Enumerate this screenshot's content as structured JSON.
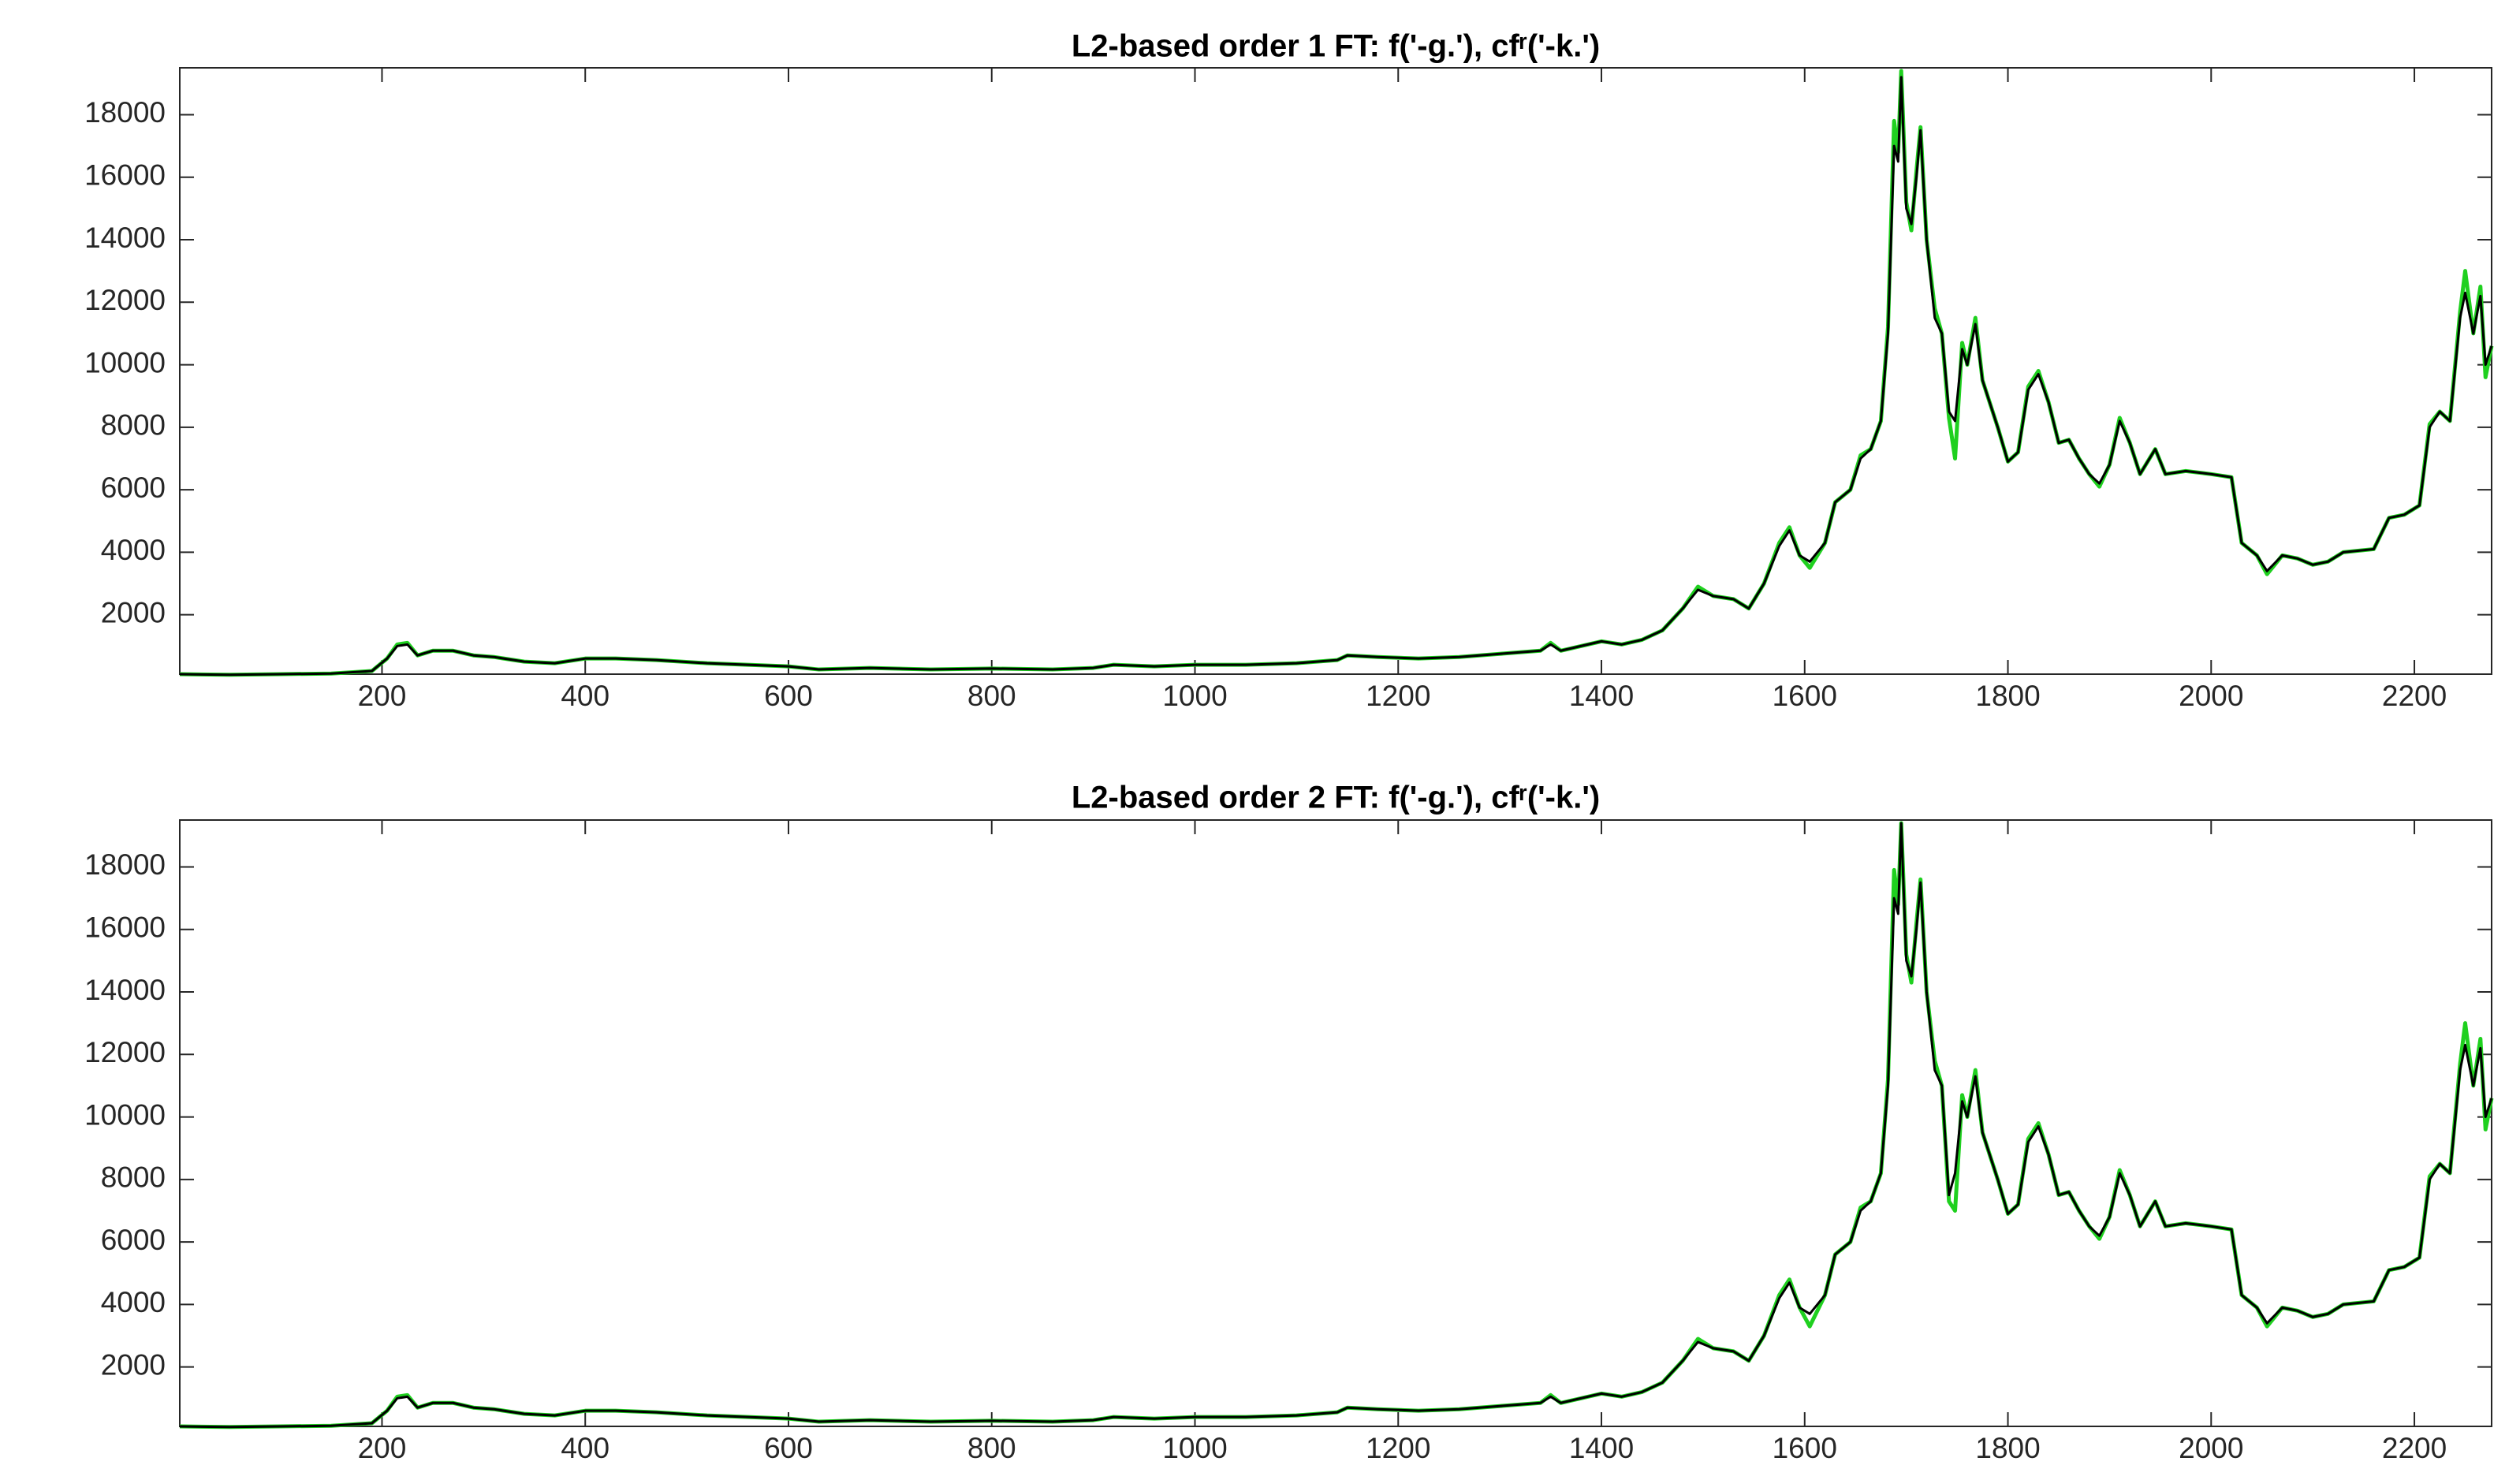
{
  "chart_data": [
    {
      "type": "line",
      "title": "L2-based order 1 FT: f('-g.'), cfʳ('-k.')",
      "x": [
        1,
        50,
        100,
        150,
        190,
        205,
        215,
        225,
        235,
        250,
        270,
        290,
        310,
        340,
        370,
        400,
        430,
        470,
        520,
        560,
        600,
        630,
        680,
        740,
        800,
        860,
        900,
        920,
        960,
        1000,
        1050,
        1100,
        1140,
        1150,
        1180,
        1220,
        1260,
        1300,
        1340,
        1350,
        1360,
        1400,
        1420,
        1440,
        1460,
        1480,
        1495,
        1510,
        1530,
        1545,
        1560,
        1575,
        1585,
        1595,
        1605,
        1620,
        1630,
        1645,
        1655,
        1665,
        1675,
        1682,
        1688,
        1692,
        1695,
        1700,
        1705,
        1710,
        1714,
        1720,
        1728,
        1735,
        1742,
        1748,
        1755,
        1760,
        1768,
        1775,
        1782,
        1790,
        1800,
        1810,
        1820,
        1830,
        1840,
        1850,
        1860,
        1870,
        1880,
        1890,
        1900,
        1910,
        1920,
        1930,
        1945,
        1955,
        1975,
        2000,
        2020,
        2030,
        2045,
        2055,
        2070,
        2085,
        2100,
        2115,
        2130,
        2160,
        2175,
        2190,
        2205,
        2215,
        2225,
        2235,
        2245,
        2250,
        2258,
        2265,
        2270,
        2276
      ],
      "series": [
        {
          "color": "#1fd01f",
          "values": [
            100,
            80,
            100,
            120,
            200,
            600,
            1050,
            1100,
            700,
            850,
            850,
            700,
            650,
            500,
            450,
            600,
            600,
            550,
            450,
            400,
            350,
            250,
            300,
            250,
            280,
            250,
            300,
            400,
            350,
            400,
            400,
            450,
            550,
            700,
            650,
            600,
            650,
            750,
            850,
            1100,
            850,
            1150,
            1050,
            1200,
            1500,
            2200,
            2900,
            2600,
            2500,
            2200,
            3000,
            4300,
            4800,
            3900,
            3500,
            4300,
            5600,
            6000,
            7100,
            7300,
            8200,
            11200,
            17800,
            16800,
            19400,
            15200,
            14300,
            16200,
            17600,
            14000,
            11800,
            11000,
            8300,
            7000,
            10700,
            10000,
            11500,
            9500,
            8800,
            8000,
            6900,
            7200,
            9300,
            9800,
            8800,
            7500,
            7600,
            7000,
            6500,
            6100,
            6800,
            8300,
            7500,
            6500,
            7300,
            6500,
            6600,
            6500,
            6400,
            4300,
            3900,
            3300,
            3900,
            3800,
            3600,
            3700,
            4000,
            4100,
            5100,
            5200,
            5500,
            8100,
            8500,
            8200,
            11700,
            13000,
            11000,
            12500,
            9600,
            10600
          ]
        },
        {
          "color": "#000000",
          "values": [
            100,
            80,
            100,
            120,
            200,
            600,
            1000,
            1050,
            700,
            850,
            850,
            700,
            650,
            500,
            450,
            600,
            600,
            550,
            450,
            400,
            350,
            250,
            300,
            250,
            280,
            250,
            300,
            400,
            350,
            400,
            400,
            450,
            550,
            700,
            650,
            600,
            650,
            750,
            850,
            1050,
            850,
            1150,
            1050,
            1200,
            1500,
            2200,
            2800,
            2600,
            2500,
            2200,
            3000,
            4200,
            4700,
            3900,
            3700,
            4300,
            5600,
            6000,
            7000,
            7300,
            8200,
            11000,
            17000,
            16500,
            19200,
            15000,
            14500,
            16000,
            17500,
            14000,
            11500,
            11000,
            8500,
            8200,
            10500,
            10000,
            11300,
            9500,
            8800,
            8000,
            6900,
            7200,
            9200,
            9700,
            8800,
            7500,
            7600,
            7000,
            6500,
            6200,
            6800,
            8200,
            7500,
            6500,
            7300,
            6500,
            6600,
            6500,
            6400,
            4300,
            3900,
            3400,
            3900,
            3800,
            3600,
            3700,
            4000,
            4100,
            5100,
            5200,
            5500,
            8000,
            8500,
            8200,
            11500,
            12300,
            11000,
            12200,
            10000,
            10600
          ]
        }
      ],
      "xlim": [
        1,
        2276
      ],
      "ylim": [
        100,
        19500
      ],
      "xticks": [
        200,
        400,
        600,
        800,
        1000,
        1200,
        1400,
        1600,
        1800,
        2000,
        2200
      ],
      "yticks": [
        2000,
        4000,
        6000,
        8000,
        10000,
        12000,
        14000,
        16000,
        18000
      ]
    },
    {
      "type": "line",
      "title": "L2-based order 2 FT: f('-g.'), cfʳ('-k.')",
      "x": [
        1,
        50,
        100,
        150,
        190,
        205,
        215,
        225,
        235,
        250,
        270,
        290,
        310,
        340,
        370,
        400,
        430,
        470,
        520,
        560,
        600,
        630,
        680,
        740,
        800,
        860,
        900,
        920,
        960,
        1000,
        1050,
        1100,
        1140,
        1150,
        1180,
        1220,
        1260,
        1300,
        1340,
        1350,
        1360,
        1400,
        1420,
        1440,
        1460,
        1480,
        1495,
        1510,
        1530,
        1545,
        1560,
        1575,
        1585,
        1595,
        1605,
        1620,
        1630,
        1645,
        1655,
        1665,
        1675,
        1682,
        1688,
        1692,
        1695,
        1700,
        1705,
        1710,
        1714,
        1720,
        1728,
        1735,
        1742,
        1748,
        1755,
        1760,
        1768,
        1775,
        1782,
        1790,
        1800,
        1810,
        1820,
        1830,
        1840,
        1850,
        1860,
        1870,
        1880,
        1890,
        1900,
        1910,
        1920,
        1930,
        1945,
        1955,
        1975,
        2000,
        2020,
        2030,
        2045,
        2055,
        2070,
        2085,
        2100,
        2115,
        2130,
        2160,
        2175,
        2190,
        2205,
        2215,
        2225,
        2235,
        2245,
        2250,
        2258,
        2265,
        2270,
        2276
      ],
      "series": [
        {
          "color": "#1fd01f",
          "values": [
            100,
            80,
            100,
            120,
            200,
            600,
            1050,
            1100,
            700,
            850,
            850,
            700,
            650,
            500,
            450,
            600,
            600,
            550,
            450,
            400,
            350,
            250,
            300,
            250,
            280,
            250,
            300,
            400,
            350,
            400,
            400,
            450,
            550,
            700,
            650,
            600,
            650,
            750,
            850,
            1100,
            850,
            1150,
            1050,
            1200,
            1500,
            2200,
            2900,
            2600,
            2500,
            2200,
            3000,
            4300,
            4800,
            3900,
            3300,
            4300,
            5600,
            6000,
            7100,
            7300,
            8200,
            11200,
            17900,
            16800,
            19400,
            15200,
            14300,
            16200,
            17600,
            14000,
            11800,
            11000,
            7300,
            7000,
            10700,
            10000,
            11500,
            9500,
            8800,
            8000,
            6900,
            7200,
            9300,
            9800,
            8800,
            7500,
            7600,
            7000,
            6500,
            6100,
            6800,
            8300,
            7500,
            6500,
            7300,
            6500,
            6600,
            6500,
            6400,
            4300,
            3900,
            3300,
            3900,
            3800,
            3600,
            3700,
            4000,
            4100,
            5100,
            5200,
            5500,
            8100,
            8500,
            8200,
            11700,
            13000,
            11000,
            12500,
            9600,
            10600
          ]
        },
        {
          "color": "#000000",
          "values": [
            100,
            80,
            100,
            120,
            200,
            600,
            1000,
            1050,
            700,
            850,
            850,
            700,
            650,
            500,
            450,
            600,
            600,
            550,
            450,
            400,
            350,
            250,
            300,
            250,
            280,
            250,
            300,
            400,
            350,
            400,
            400,
            450,
            550,
            700,
            650,
            600,
            650,
            750,
            850,
            1050,
            850,
            1150,
            1050,
            1200,
            1500,
            2200,
            2800,
            2600,
            2500,
            2200,
            3000,
            4200,
            4700,
            3900,
            3700,
            4300,
            5600,
            6000,
            7000,
            7300,
            8200,
            11000,
            17000,
            16500,
            19400,
            15000,
            14500,
            16000,
            17500,
            14000,
            11500,
            11000,
            7500,
            8200,
            10500,
            10000,
            11300,
            9500,
            8800,
            8000,
            6900,
            7200,
            9200,
            9700,
            8800,
            7500,
            7600,
            7000,
            6500,
            6200,
            6800,
            8200,
            7500,
            6500,
            7300,
            6500,
            6600,
            6500,
            6400,
            4300,
            3900,
            3400,
            3900,
            3800,
            3600,
            3700,
            4000,
            4100,
            5100,
            5200,
            5500,
            8000,
            8500,
            8200,
            11500,
            12300,
            11000,
            12200,
            10000,
            10600
          ]
        }
      ],
      "xlim": [
        1,
        2276
      ],
      "ylim": [
        100,
        19500
      ],
      "xticks": [
        200,
        400,
        600,
        800,
        1000,
        1200,
        1400,
        1600,
        1800,
        2000,
        2200
      ],
      "yticks": [
        2000,
        4000,
        6000,
        8000,
        10000,
        12000,
        14000,
        16000,
        18000
      ]
    }
  ]
}
